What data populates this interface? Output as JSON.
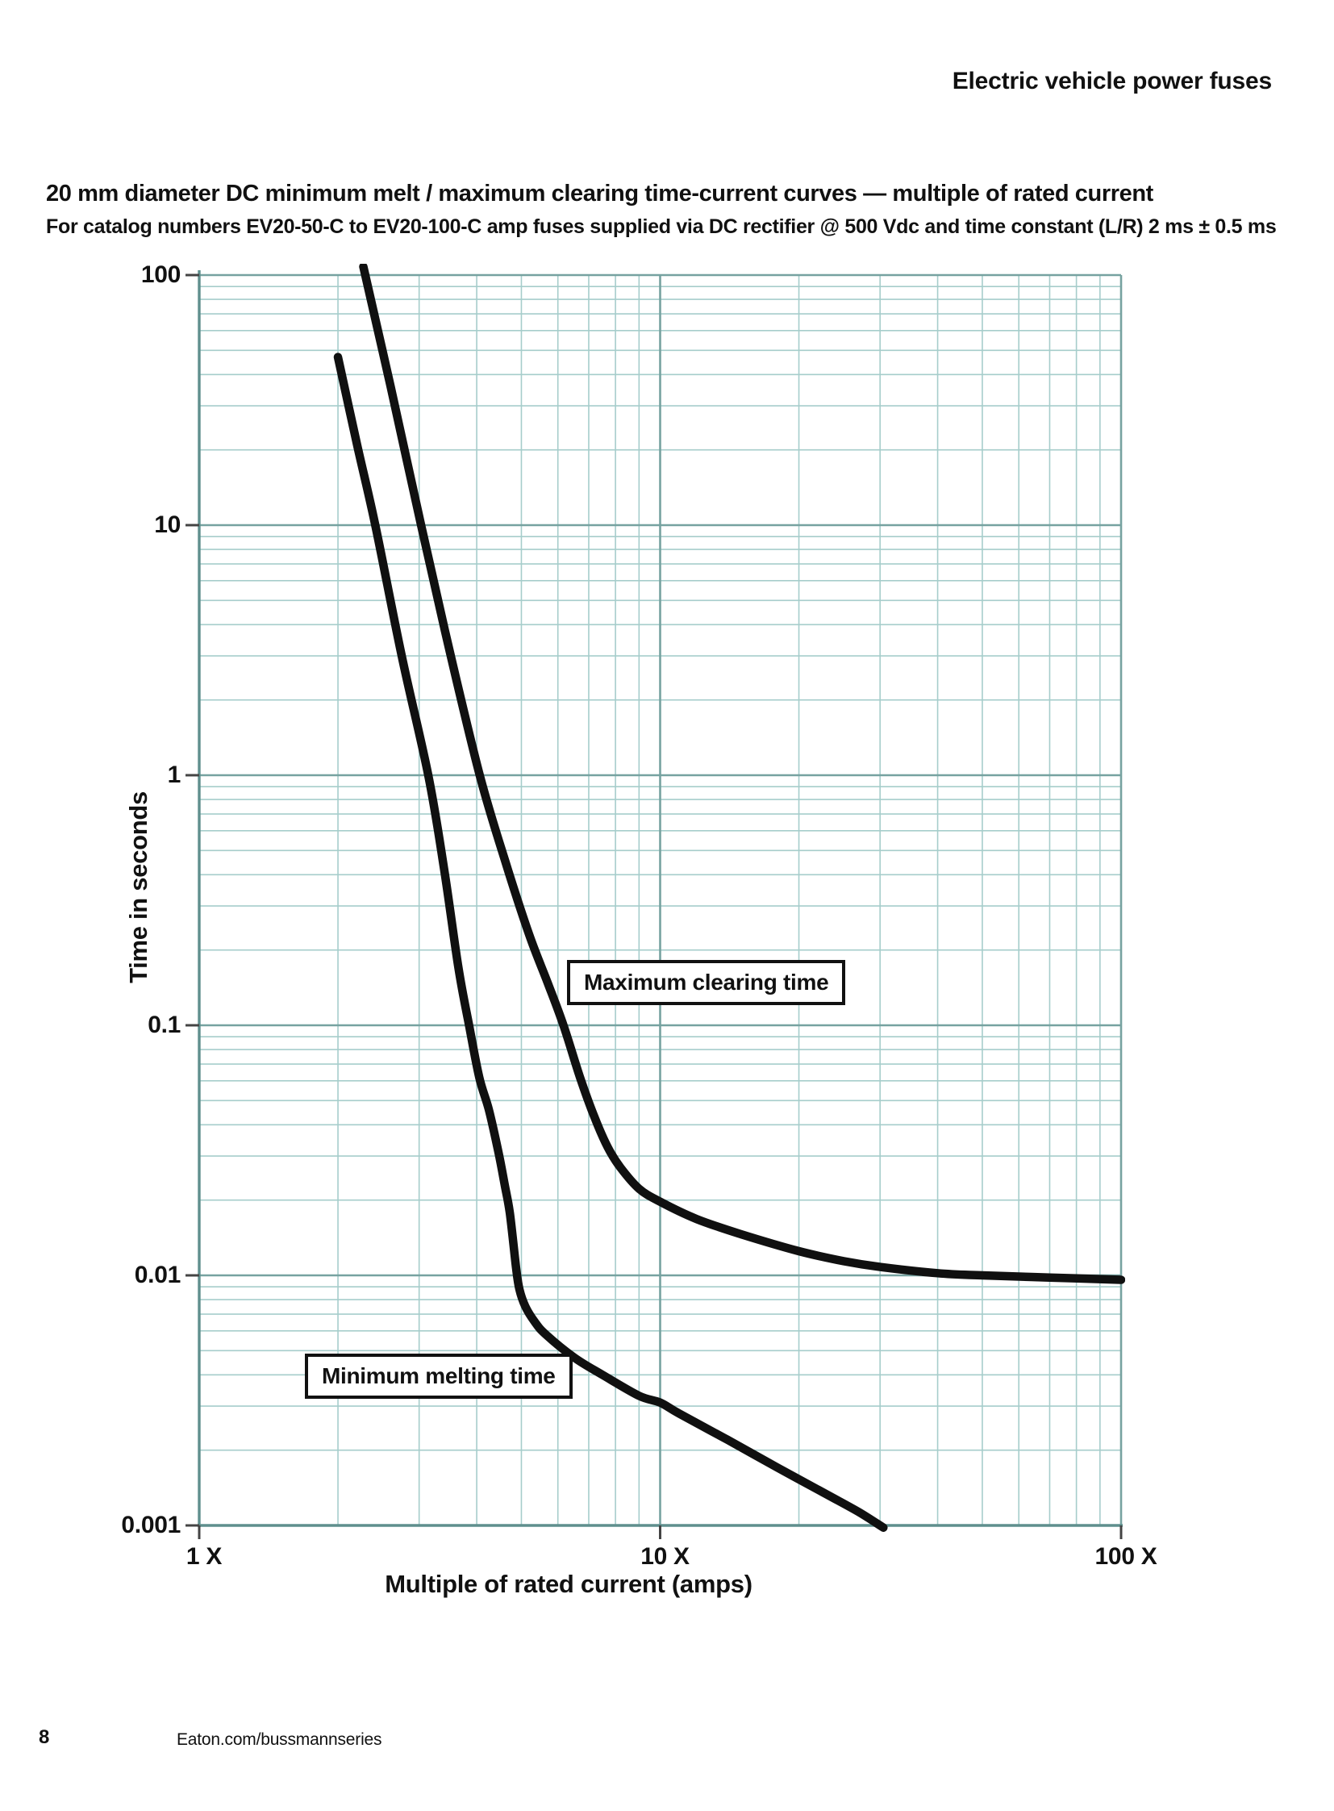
{
  "header": {
    "title": "Electric vehicle power fuses"
  },
  "title": "20 mm diameter DC minimum melt / maximum clearing time-current curves — multiple of rated current",
  "subtitle": "For catalog numbers EV20-50-C to EV20-100-C amp fuses supplied via DC rectifier @ 500 Vdc and time constant (L/R) 2 ms ± 0.5 ms",
  "footer": {
    "page_number": "8",
    "url": "Eaton.com/bussmannseries"
  },
  "chart_data": {
    "type": "line",
    "x_axis": {
      "label": "Multiple of rated current (amps)",
      "scale": "log",
      "min": 1,
      "max": 100,
      "ticks": [
        {
          "value": 1,
          "label": "1 X"
        },
        {
          "value": 10,
          "label": "10 X"
        },
        {
          "value": 100,
          "label": "100 X"
        }
      ]
    },
    "y_axis": {
      "label": "Time in seconds",
      "scale": "log",
      "min": 0.001,
      "max": 100,
      "ticks": [
        {
          "value": 100,
          "label": "100"
        },
        {
          "value": 10,
          "label": "10"
        },
        {
          "value": 1,
          "label": "1"
        },
        {
          "value": 0.1,
          "label": "0.1"
        },
        {
          "value": 0.01,
          "label": "0.01"
        },
        {
          "value": 0.001,
          "label": "0.001"
        }
      ]
    },
    "grid": {
      "minor_color": "#a6cdcb",
      "major_color": "#76a2a0",
      "axis_color": "#5f8f8d",
      "tick_color": "#444444"
    },
    "curve_color": "#101010",
    "series": [
      {
        "name": "Maximum clearing time",
        "points": [
          [
            2.27,
            108
          ],
          [
            2.6,
            36
          ],
          [
            3.03,
            10
          ],
          [
            3.5,
            3.1
          ],
          [
            4.06,
            1
          ],
          [
            4.6,
            0.46
          ],
          [
            5.2,
            0.23
          ],
          [
            5.7,
            0.148
          ],
          [
            6.17,
            0.1
          ],
          [
            6.7,
            0.062
          ],
          [
            7.2,
            0.043
          ],
          [
            7.7,
            0.0325
          ],
          [
            8.2,
            0.027
          ],
          [
            9.0,
            0.0222
          ],
          [
            10,
            0.0197
          ],
          [
            12,
            0.0168
          ],
          [
            15,
            0.0146
          ],
          [
            20,
            0.0125
          ],
          [
            25,
            0.0114
          ],
          [
            30,
            0.0108
          ],
          [
            40,
            0.0102
          ],
          [
            50,
            0.01
          ],
          [
            70,
            0.0098
          ],
          [
            100,
            0.0096
          ]
        ]
      },
      {
        "name": "Minimum melting time",
        "points": [
          [
            2.0,
            47
          ],
          [
            2.2,
            21
          ],
          [
            2.41,
            10
          ],
          [
            2.75,
            3.0
          ],
          [
            3.14,
            1
          ],
          [
            3.4,
            0.42
          ],
          [
            3.65,
            0.17
          ],
          [
            3.85,
            0.1
          ],
          [
            4.05,
            0.062
          ],
          [
            4.25,
            0.046
          ],
          [
            4.46,
            0.031
          ],
          [
            4.6,
            0.023
          ],
          [
            4.72,
            0.0177
          ],
          [
            4.87,
            0.0107
          ],
          [
            4.95,
            0.0088
          ],
          [
            5.1,
            0.0075
          ],
          [
            5.35,
            0.0065
          ],
          [
            5.65,
            0.0058
          ],
          [
            6.5,
            0.0047
          ],
          [
            7.5,
            0.004
          ],
          [
            9.0,
            0.0033
          ],
          [
            10,
            0.0031
          ],
          [
            11,
            0.0028
          ],
          [
            14,
            0.0022
          ],
          [
            18,
            0.0017
          ],
          [
            23,
            0.00133
          ],
          [
            27,
            0.00113
          ],
          [
            30.5,
            0.00098
          ]
        ]
      }
    ]
  }
}
